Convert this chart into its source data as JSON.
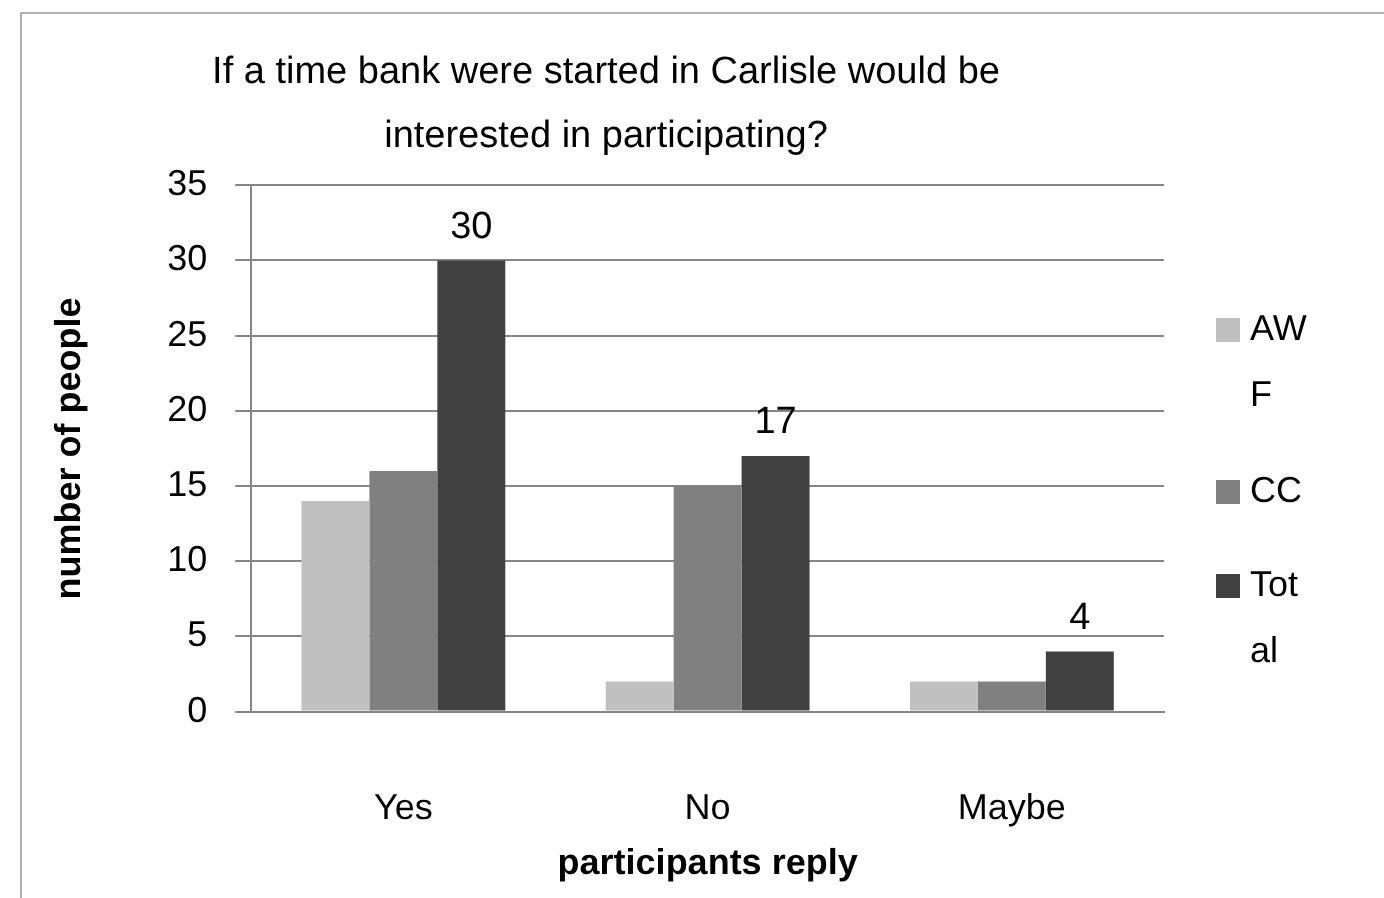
{
  "chart_data": {
    "type": "bar",
    "title": "If a time bank were started in Carlisle would be interested in participating?",
    "xlabel": "participants reply",
    "ylabel": "number of people",
    "categories": [
      "Yes",
      "No",
      "Maybe"
    ],
    "series": [
      {
        "name": "AWF",
        "color": "#c0c0c0",
        "values": [
          14,
          2,
          2
        ]
      },
      {
        "name": "CC",
        "color": "#808080",
        "values": [
          16,
          15,
          2
        ]
      },
      {
        "name": "Total",
        "color": "#404040",
        "values": [
          30,
          17,
          4
        ],
        "value_labels": [
          "30",
          "17",
          "4"
        ]
      }
    ],
    "ylim": [
      0,
      35
    ],
    "yticks": [
      0,
      5,
      10,
      15,
      20,
      25,
      30,
      35
    ],
    "grid": "y",
    "legend": "right"
  }
}
